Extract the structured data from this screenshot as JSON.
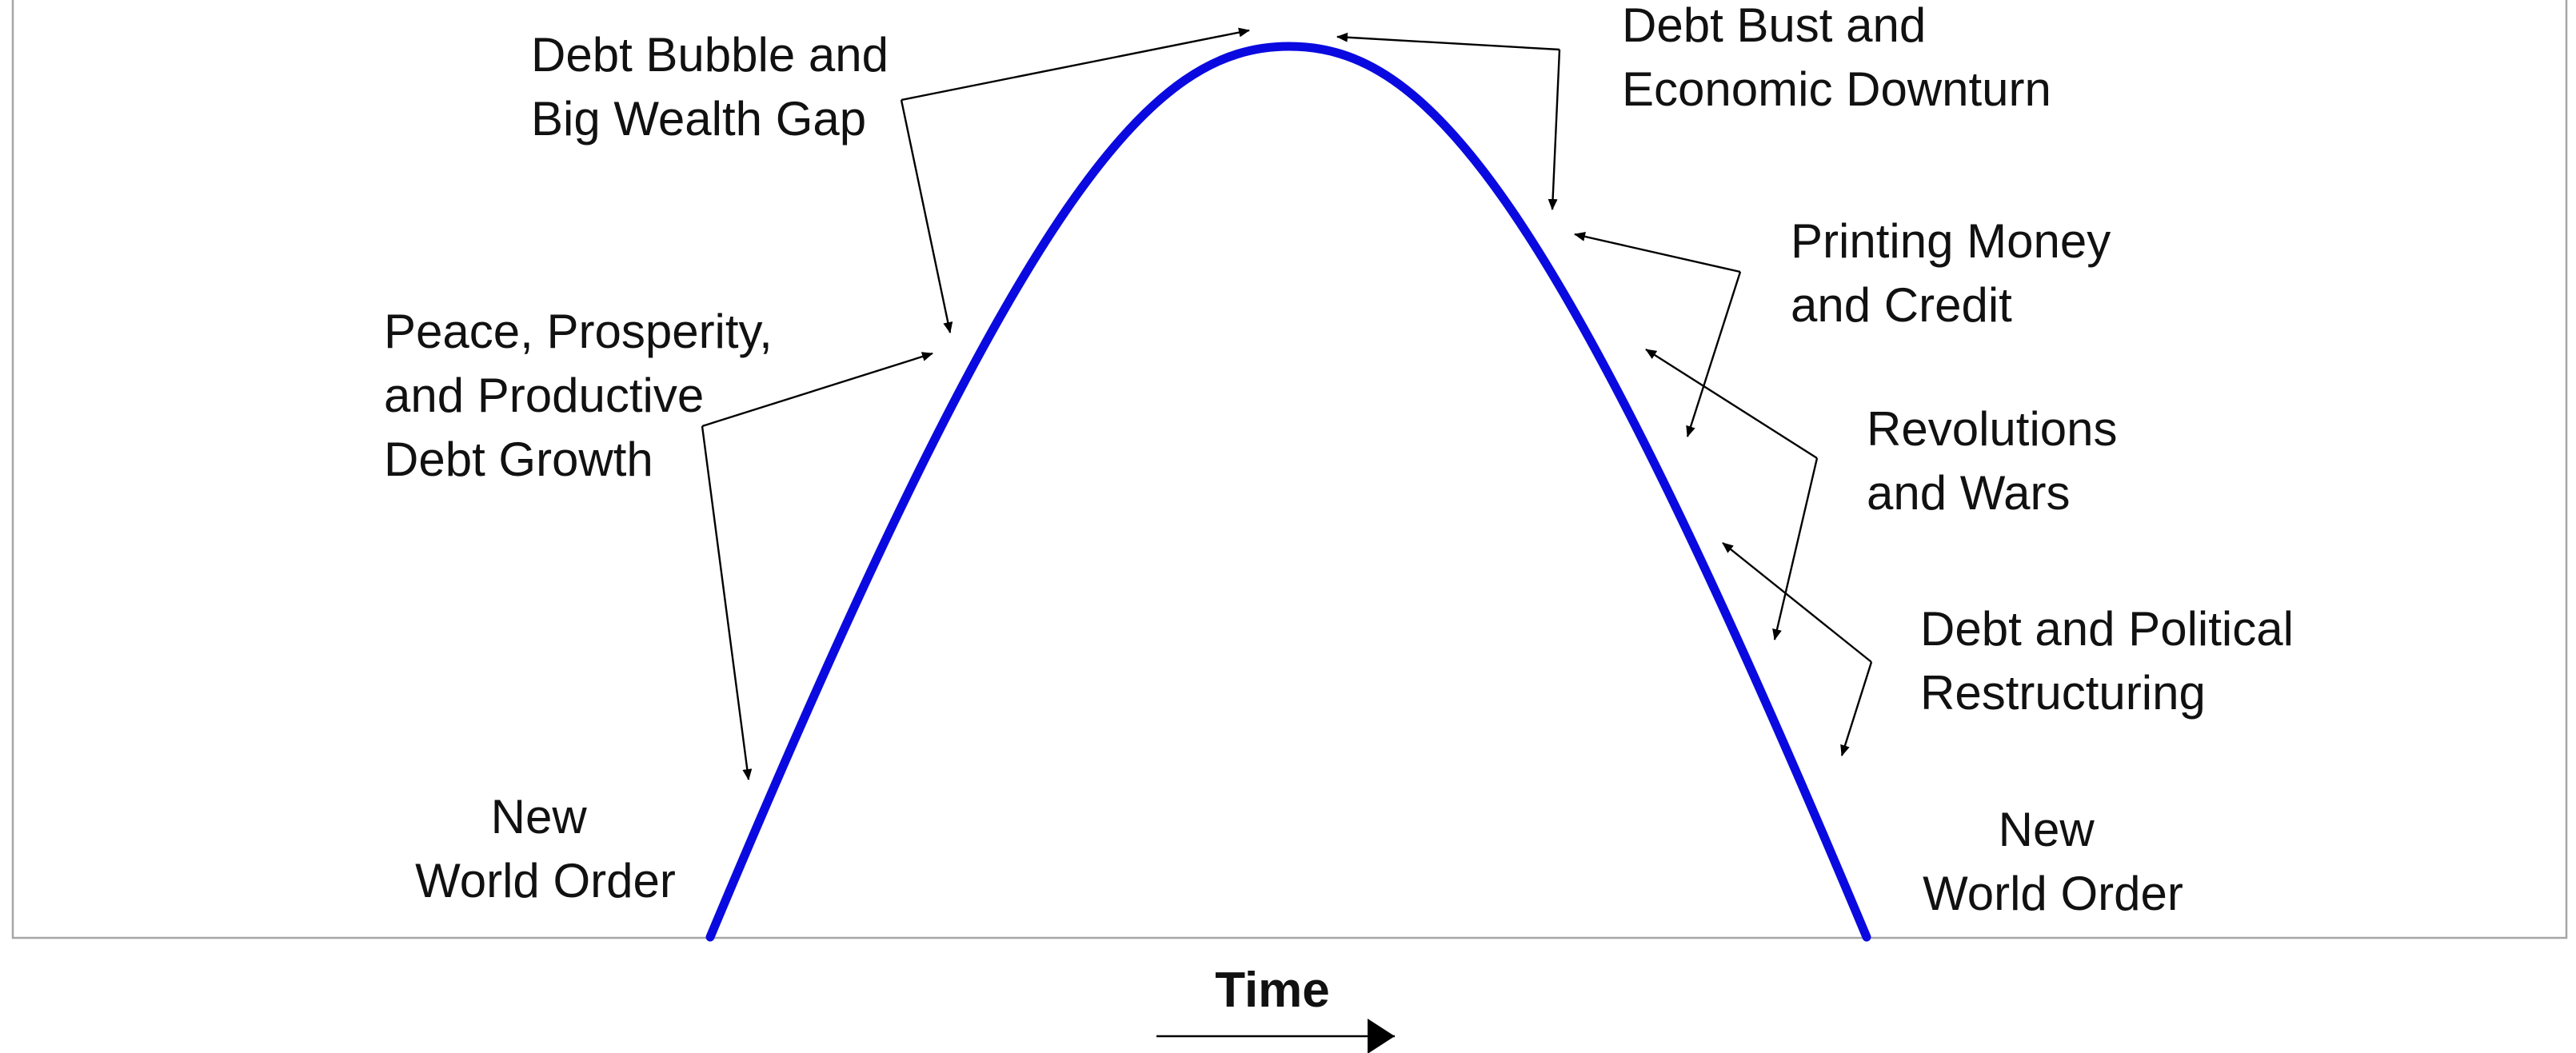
{
  "curve": {
    "color": "#0a0ae0"
  },
  "frame": {
    "color": "#a6a6a6"
  },
  "stages": {
    "new_order_left": [
      "New",
      "World Order"
    ],
    "peace": [
      "Peace, Prosperity,",
      "and Productive",
      "Debt Growth"
    ],
    "bubble": [
      "Debt Bubble and",
      "Big Wealth Gap"
    ],
    "bust": [
      "Debt Bust and",
      "Economic Downturn"
    ],
    "printing": [
      "Printing Money",
      "and Credit"
    ],
    "revolutions": [
      "Revolutions",
      "and Wars"
    ],
    "restructuring": [
      "Debt and Political",
      "Restructuring"
    ],
    "new_order_right": [
      "New",
      "World Order"
    ]
  },
  "x_axis": {
    "label": "Time"
  }
}
